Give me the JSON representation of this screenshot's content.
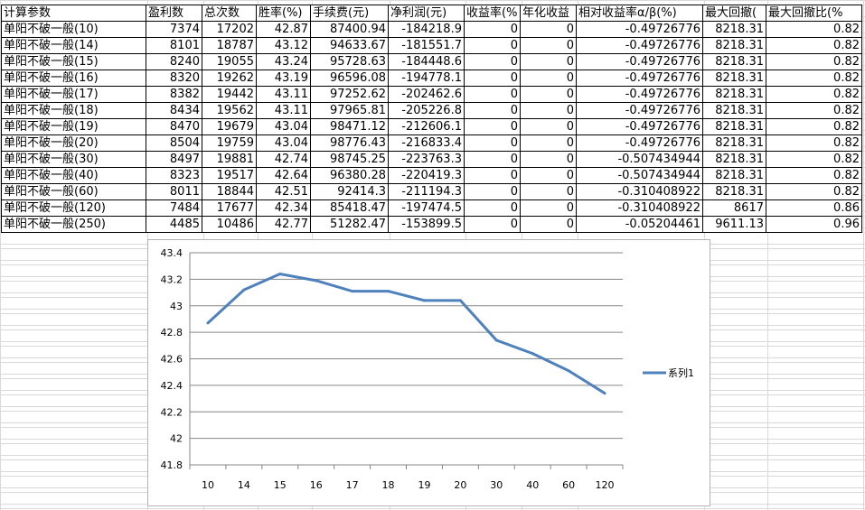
{
  "table": {
    "headers": [
      "计算参数",
      "盈利数",
      "总次数",
      "胜率(%)",
      "手续费(元)",
      "净利润(元)",
      "收益率(%",
      "年化收益",
      "相对收益率α/β(%)",
      "最大回撤(",
      "最大回撤比(%"
    ],
    "rows": [
      [
        "单阳不破一般(10)",
        "7374",
        "17202",
        "42.87",
        "87400.94",
        "-184218.9",
        "0",
        "0",
        "-0.49726776",
        "8218.31",
        "0.82"
      ],
      [
        "单阳不破一般(14)",
        "8101",
        "18787",
        "43.12",
        "94633.67",
        "-181551.7",
        "0",
        "0",
        "-0.49726776",
        "8218.31",
        "0.82"
      ],
      [
        "单阳不破一般(15)",
        "8240",
        "19055",
        "43.24",
        "95728.63",
        "-184448.6",
        "0",
        "0",
        "-0.49726776",
        "8218.31",
        "0.82"
      ],
      [
        "单阳不破一般(16)",
        "8320",
        "19262",
        "43.19",
        "96596.08",
        "-194778.1",
        "0",
        "0",
        "-0.49726776",
        "8218.31",
        "0.82"
      ],
      [
        "单阳不破一般(17)",
        "8382",
        "19442",
        "43.11",
        "97252.62",
        "-202462.6",
        "0",
        "0",
        "-0.49726776",
        "8218.31",
        "0.82"
      ],
      [
        "单阳不破一般(18)",
        "8434",
        "19562",
        "43.11",
        "97965.81",
        "-205226.8",
        "0",
        "0",
        "-0.49726776",
        "8218.31",
        "0.82"
      ],
      [
        "单阳不破一般(19)",
        "8470",
        "19679",
        "43.04",
        "98471.12",
        "-212606.1",
        "0",
        "0",
        "-0.49726776",
        "8218.31",
        "0.82"
      ],
      [
        "单阳不破一般(20)",
        "8504",
        "19759",
        "43.04",
        "98776.43",
        "-216833.4",
        "0",
        "0",
        "-0.49726776",
        "8218.31",
        "0.82"
      ],
      [
        "单阳不破一般(30)",
        "8497",
        "19881",
        "42.74",
        "98745.25",
        "-223763.3",
        "0",
        "0",
        "-0.507434944",
        "8218.31",
        "0.82"
      ],
      [
        "单阳不破一般(40)",
        "8323",
        "19517",
        "42.64",
        "96380.28",
        "-220419.3",
        "0",
        "0",
        "-0.507434944",
        "8218.31",
        "0.82"
      ],
      [
        "单阳不破一般(60)",
        "8011",
        "18844",
        "42.51",
        "92414.3",
        "-211194.3",
        "0",
        "0",
        "-0.310408922",
        "8218.31",
        "0.82"
      ],
      [
        "单阳不破一般(120)",
        "7484",
        "17677",
        "42.34",
        "85418.47",
        "-197474.5",
        "0",
        "0",
        "-0.310408922",
        "8617",
        "0.86"
      ],
      [
        "单阳不破一般(250)",
        "4485",
        "10486",
        "42.77",
        "51282.47",
        "-153899.5",
        "0",
        "0",
        "-0.05204461",
        "9611.13",
        "0.96"
      ]
    ]
  },
  "chart_data": {
    "type": "line",
    "categories": [
      "10",
      "14",
      "15",
      "16",
      "17",
      "18",
      "19",
      "20",
      "30",
      "40",
      "60",
      "120"
    ],
    "series": [
      {
        "name": "系列1",
        "values": [
          42.87,
          43.12,
          43.24,
          43.19,
          43.11,
          43.11,
          43.04,
          43.04,
          42.74,
          42.64,
          42.51,
          42.34
        ]
      }
    ],
    "yticks": [
      "43.4",
      "43.2",
      "43",
      "42.8",
      "42.6",
      "42.4",
      "42.2",
      "42",
      "41.8"
    ],
    "ylim": [
      41.8,
      43.4
    ],
    "grid": true,
    "legend": "right",
    "line_color": "#4f81bd",
    "grid_color": "#868686"
  }
}
